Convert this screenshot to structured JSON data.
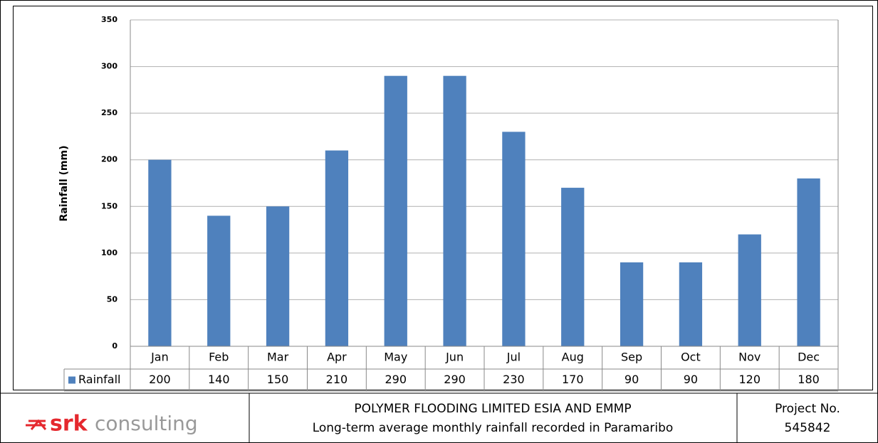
{
  "chart_data": {
    "type": "bar",
    "ylabel": "Rainfall (mm)",
    "categories": [
      "Jan",
      "Feb",
      "Mar",
      "Apr",
      "May",
      "Jun",
      "Jul",
      "Aug",
      "Sep",
      "Oct",
      "Nov",
      "Dec"
    ],
    "series": [
      {
        "name": "Rainfall",
        "color": "#4f81bd",
        "values": [
          200,
          140,
          150,
          210,
          290,
          290,
          230,
          170,
          90,
          90,
          120,
          180
        ]
      }
    ],
    "ylim": [
      0,
      350
    ],
    "yticks": [
      0,
      50,
      100,
      150,
      200,
      250,
      300,
      350
    ],
    "grid": true
  },
  "footer": {
    "logo_mark": "srk",
    "logo_text": "consulting",
    "title": "POLYMER FLOODING LIMITED ESIA AND EMMP",
    "subtitle": "Long-term average monthly rainfall recorded in Paramaribo",
    "project_label": "Project No.",
    "project_number": "545842"
  }
}
